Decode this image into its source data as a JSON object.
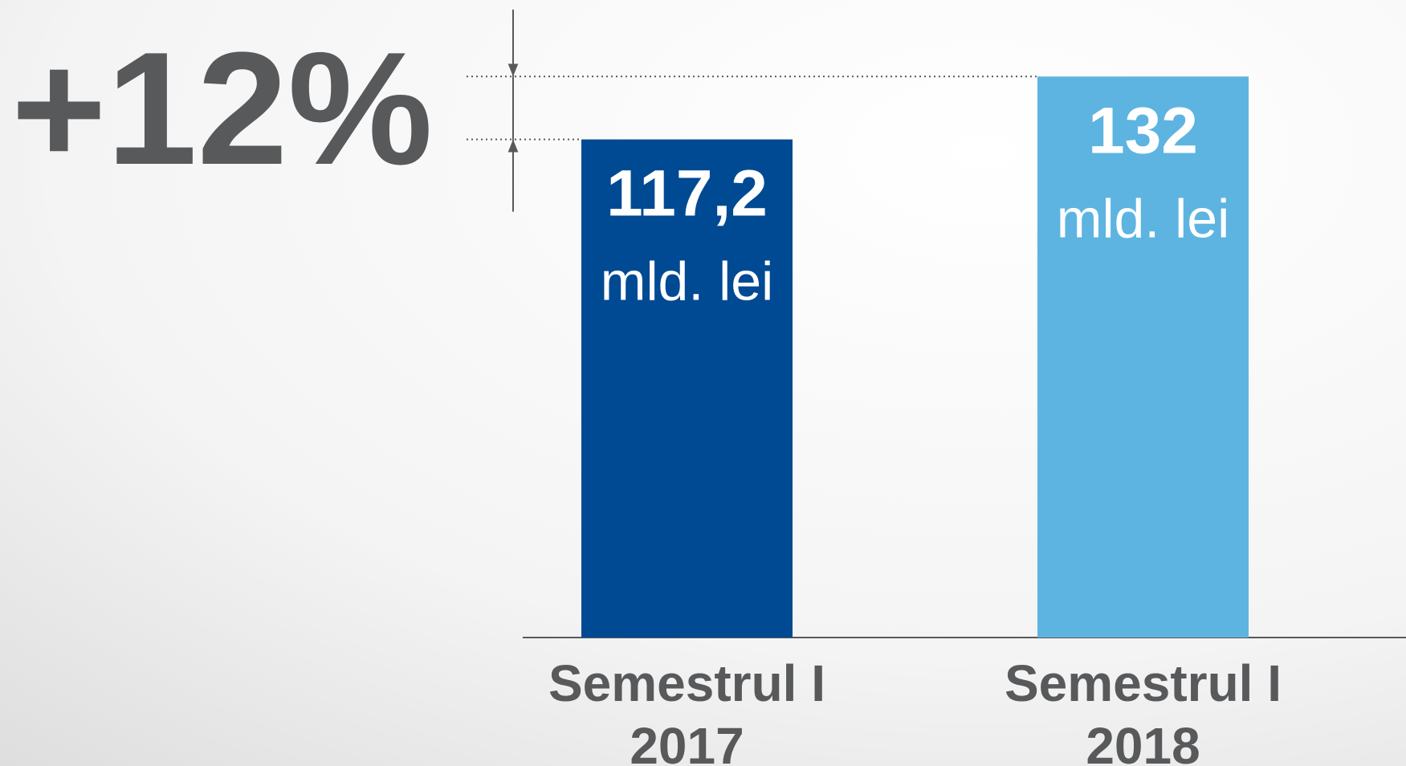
{
  "chart_data": {
    "type": "bar",
    "title": "+12%",
    "categories": [
      "Semestrul I 2017",
      "Semestrul I 2018"
    ],
    "values": [
      117.2,
      132
    ],
    "value_labels": [
      "117,2",
      "132"
    ],
    "unit": "mld. lei",
    "colors": [
      "#004a93",
      "#5db4e0"
    ],
    "ylim": [
      0,
      150
    ]
  }
}
